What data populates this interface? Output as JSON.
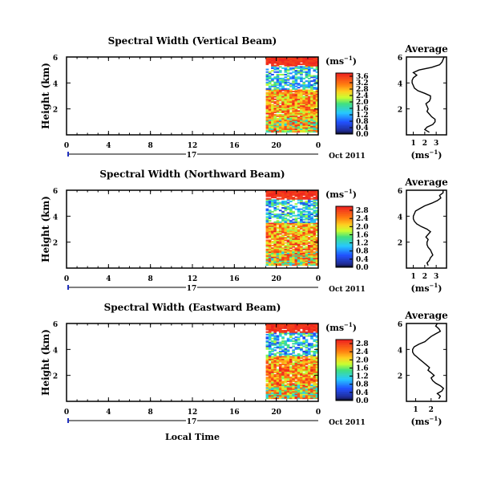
{
  "figure": {
    "xlabel": "Local Time",
    "date_label": "Oct 2011",
    "day_label": "17",
    "colorbar_unit": "(ms",
    "colorbar_unit_sup": "−1",
    "colorbar_unit_close": ")"
  },
  "chart_data": [
    {
      "type": "heatmap",
      "title": "Spectral Width (Vertical Beam)",
      "ylabel": "Height (km)",
      "xlim": [
        0,
        24
      ],
      "x_ticks": [
        "0",
        "4",
        "8",
        "12",
        "16",
        "20",
        "0"
      ],
      "ylim": [
        0,
        6
      ],
      "y_ticks": [
        "6",
        "4",
        "2"
      ],
      "data_x_range": [
        19,
        24
      ],
      "data_y_range": [
        0.2,
        6
      ],
      "cell_hours": 0.25,
      "cell_km": 0.1,
      "colorbar": {
        "min": 0.0,
        "max": 3.8,
        "labels": [
          "3.6",
          "3.2",
          "2.8",
          "2.4",
          "2.0",
          "1.6",
          "1.2",
          "0.8",
          "0.4",
          "0.0"
        ]
      },
      "average_panel": {
        "title": "Average",
        "xlabel": "(ms−1)",
        "x_ticks": [
          "1",
          "2",
          "3"
        ],
        "xlim": [
          0.4,
          3.9
        ],
        "ylim": [
          0,
          6
        ],
        "y_ticks": [
          "6",
          "4",
          "2"
        ],
        "profile": [
          {
            "h": 0.2,
            "v": 2.4
          },
          {
            "h": 0.4,
            "v": 2.0
          },
          {
            "h": 0.6,
            "v": 2.2
          },
          {
            "h": 0.8,
            "v": 2.7
          },
          {
            "h": 1.0,
            "v": 2.9
          },
          {
            "h": 1.2,
            "v": 2.9
          },
          {
            "h": 1.4,
            "v": 2.6
          },
          {
            "h": 1.6,
            "v": 2.4
          },
          {
            "h": 1.8,
            "v": 2.2
          },
          {
            "h": 2.0,
            "v": 2.3
          },
          {
            "h": 2.2,
            "v": 2.2
          },
          {
            "h": 2.4,
            "v": 2.1
          },
          {
            "h": 2.6,
            "v": 2.4
          },
          {
            "h": 2.8,
            "v": 2.5
          },
          {
            "h": 3.0,
            "v": 2.5
          },
          {
            "h": 3.2,
            "v": 2.0
          },
          {
            "h": 3.4,
            "v": 1.4
          },
          {
            "h": 3.6,
            "v": 1.1
          },
          {
            "h": 3.8,
            "v": 1.0
          },
          {
            "h": 4.0,
            "v": 0.9
          },
          {
            "h": 4.2,
            "v": 0.9
          },
          {
            "h": 4.4,
            "v": 1.0
          },
          {
            "h": 4.6,
            "v": 1.3
          },
          {
            "h": 4.8,
            "v": 1.0
          },
          {
            "h": 5.0,
            "v": 1.5
          },
          {
            "h": 5.2,
            "v": 2.6
          },
          {
            "h": 5.4,
            "v": 3.3
          },
          {
            "h": 5.6,
            "v": 3.5
          },
          {
            "h": 5.8,
            "v": 3.6
          },
          {
            "h": 6.0,
            "v": 3.7
          }
        ]
      }
    },
    {
      "type": "heatmap",
      "title": "Spectral Width (Northward Beam)",
      "ylabel": "Height (km)",
      "xlim": [
        0,
        24
      ],
      "x_ticks": [
        "0",
        "4",
        "8",
        "12",
        "16",
        "20",
        "0"
      ],
      "ylim": [
        0,
        6
      ],
      "y_ticks": [
        "6",
        "4",
        "2"
      ],
      "data_x_range": [
        19,
        24
      ],
      "data_y_range": [
        0.2,
        6
      ],
      "cell_hours": 0.25,
      "cell_km": 0.1,
      "colorbar": {
        "min": 0.0,
        "max": 3.0,
        "labels": [
          "2.8",
          "2.4",
          "2.0",
          "1.6",
          "1.2",
          "0.8",
          "0.4",
          "0.0"
        ]
      },
      "average_panel": {
        "title": "Average",
        "xlabel": "(ms−1)",
        "x_ticks": [
          "1",
          "2",
          "3"
        ],
        "xlim": [
          0.4,
          3.9
        ],
        "ylim": [
          0,
          6
        ],
        "y_ticks": [
          "6",
          "4",
          "2"
        ],
        "profile": [
          {
            "h": 0.2,
            "v": 2.3
          },
          {
            "h": 0.4,
            "v": 2.2
          },
          {
            "h": 0.6,
            "v": 2.4
          },
          {
            "h": 0.8,
            "v": 2.5
          },
          {
            "h": 1.0,
            "v": 2.7
          },
          {
            "h": 1.2,
            "v": 2.6
          },
          {
            "h": 1.4,
            "v": 2.5
          },
          {
            "h": 1.6,
            "v": 2.3
          },
          {
            "h": 1.8,
            "v": 2.2
          },
          {
            "h": 2.0,
            "v": 2.2
          },
          {
            "h": 2.2,
            "v": 2.3
          },
          {
            "h": 2.4,
            "v": 2.1
          },
          {
            "h": 2.6,
            "v": 2.3
          },
          {
            "h": 2.8,
            "v": 2.5
          },
          {
            "h": 3.0,
            "v": 2.2
          },
          {
            "h": 3.2,
            "v": 1.7
          },
          {
            "h": 3.4,
            "v": 1.3
          },
          {
            "h": 3.6,
            "v": 1.1
          },
          {
            "h": 3.8,
            "v": 1.0
          },
          {
            "h": 4.0,
            "v": 1.0
          },
          {
            "h": 4.2,
            "v": 1.1
          },
          {
            "h": 4.4,
            "v": 1.2
          },
          {
            "h": 4.6,
            "v": 1.6
          },
          {
            "h": 4.8,
            "v": 2.0
          },
          {
            "h": 5.0,
            "v": 2.6
          },
          {
            "h": 5.2,
            "v": 3.1
          },
          {
            "h": 5.4,
            "v": 3.4
          },
          {
            "h": 5.6,
            "v": 3.3
          },
          {
            "h": 5.8,
            "v": 3.6
          },
          {
            "h": 6.0,
            "v": 3.6
          }
        ]
      }
    },
    {
      "type": "heatmap",
      "title": "Spectral Width (Eastward Beam)",
      "ylabel": "Height (km)",
      "xlim": [
        0,
        24
      ],
      "x_ticks": [
        "0",
        "4",
        "8",
        "12",
        "16",
        "20",
        "0"
      ],
      "ylim": [
        0,
        6
      ],
      "y_ticks": [
        "6",
        "4",
        "2"
      ],
      "data_x_range": [
        19,
        24
      ],
      "data_y_range": [
        0.2,
        6
      ],
      "cell_hours": 0.25,
      "cell_km": 0.1,
      "colorbar": {
        "min": 0.0,
        "max": 3.0,
        "labels": [
          "2.8",
          "2.4",
          "2.0",
          "1.6",
          "1.2",
          "0.8",
          "0.4",
          "0.0"
        ]
      },
      "average_panel": {
        "title": "Average",
        "xlabel": "(ms−1)",
        "x_ticks": [
          "1",
          "2"
        ],
        "xlim": [
          0.4,
          3.0
        ],
        "ylim": [
          0,
          6
        ],
        "y_ticks": [
          "6",
          "4",
          "2"
        ],
        "profile": [
          {
            "h": 0.2,
            "v": 2.5
          },
          {
            "h": 0.4,
            "v": 2.6
          },
          {
            "h": 0.6,
            "v": 2.4
          },
          {
            "h": 0.8,
            "v": 2.7
          },
          {
            "h": 1.0,
            "v": 2.8
          },
          {
            "h": 1.2,
            "v": 2.6
          },
          {
            "h": 1.4,
            "v": 2.3
          },
          {
            "h": 1.6,
            "v": 2.1
          },
          {
            "h": 1.8,
            "v": 2.0
          },
          {
            "h": 2.0,
            "v": 2.2
          },
          {
            "h": 2.2,
            "v": 2.0
          },
          {
            "h": 2.4,
            "v": 1.8
          },
          {
            "h": 2.6,
            "v": 1.9
          },
          {
            "h": 2.8,
            "v": 1.7
          },
          {
            "h": 3.0,
            "v": 1.5
          },
          {
            "h": 3.2,
            "v": 1.3
          },
          {
            "h": 3.4,
            "v": 1.1
          },
          {
            "h": 3.6,
            "v": 0.9
          },
          {
            "h": 3.8,
            "v": 0.8
          },
          {
            "h": 4.0,
            "v": 0.8
          },
          {
            "h": 4.2,
            "v": 0.9
          },
          {
            "h": 4.4,
            "v": 1.2
          },
          {
            "h": 4.6,
            "v": 1.6
          },
          {
            "h": 4.8,
            "v": 1.8
          },
          {
            "h": 5.0,
            "v": 2.0
          },
          {
            "h": 5.2,
            "v": 2.3
          },
          {
            "h": 5.4,
            "v": 2.6
          },
          {
            "h": 5.6,
            "v": 2.5
          },
          {
            "h": 5.8,
            "v": 2.3
          },
          {
            "h": 6.0,
            "v": 2.4
          }
        ]
      }
    }
  ]
}
